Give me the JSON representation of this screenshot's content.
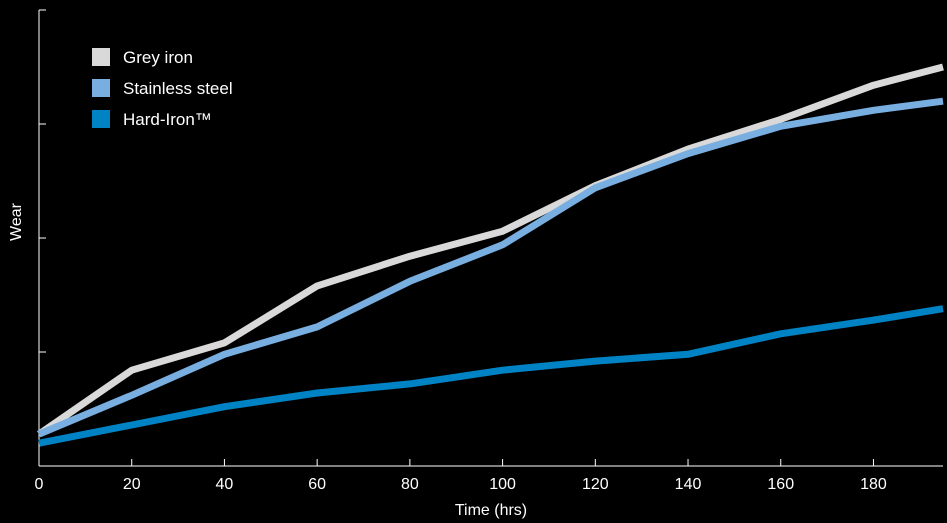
{
  "chart_data": {
    "type": "line",
    "title": "",
    "xlabel": "Time (hrs)",
    "ylabel": "Wear",
    "xlim": [
      0,
      195
    ],
    "ylim": [
      0,
      10
    ],
    "x_ticks": [
      "0",
      "20",
      "40",
      "60",
      "80",
      "100",
      "120",
      "140",
      "160",
      "180"
    ],
    "x_tick_values": [
      0,
      20,
      40,
      60,
      80,
      100,
      120,
      140,
      160,
      180
    ],
    "y_tick_values": [
      2.5,
      5,
      7.5,
      10
    ],
    "grid": false,
    "legend_position": "top-left",
    "series": [
      {
        "name": "Grey iron",
        "color": "#d9d9d9",
        "x": [
          0,
          20,
          40,
          60,
          80,
          100,
          120,
          140,
          160,
          180,
          195
        ],
        "y": [
          0.7,
          2.1,
          2.7,
          3.95,
          4.6,
          5.15,
          6.15,
          6.95,
          7.6,
          8.35,
          8.75
        ]
      },
      {
        "name": "Stainless steel",
        "color": "#78aee0",
        "x": [
          0,
          20,
          40,
          60,
          80,
          100,
          120,
          140,
          160,
          180,
          195
        ],
        "y": [
          0.7,
          1.55,
          2.45,
          3.05,
          4.05,
          4.85,
          6.1,
          6.85,
          7.45,
          7.8,
          8.0
        ]
      },
      {
        "name": "Hard-Iron™",
        "color": "#0083c4",
        "x": [
          0,
          20,
          40,
          60,
          80,
          100,
          120,
          140,
          160,
          180,
          195
        ],
        "y": [
          0.5,
          0.9,
          1.3,
          1.6,
          1.8,
          2.1,
          2.3,
          2.45,
          2.9,
          3.2,
          3.45
        ]
      }
    ]
  }
}
